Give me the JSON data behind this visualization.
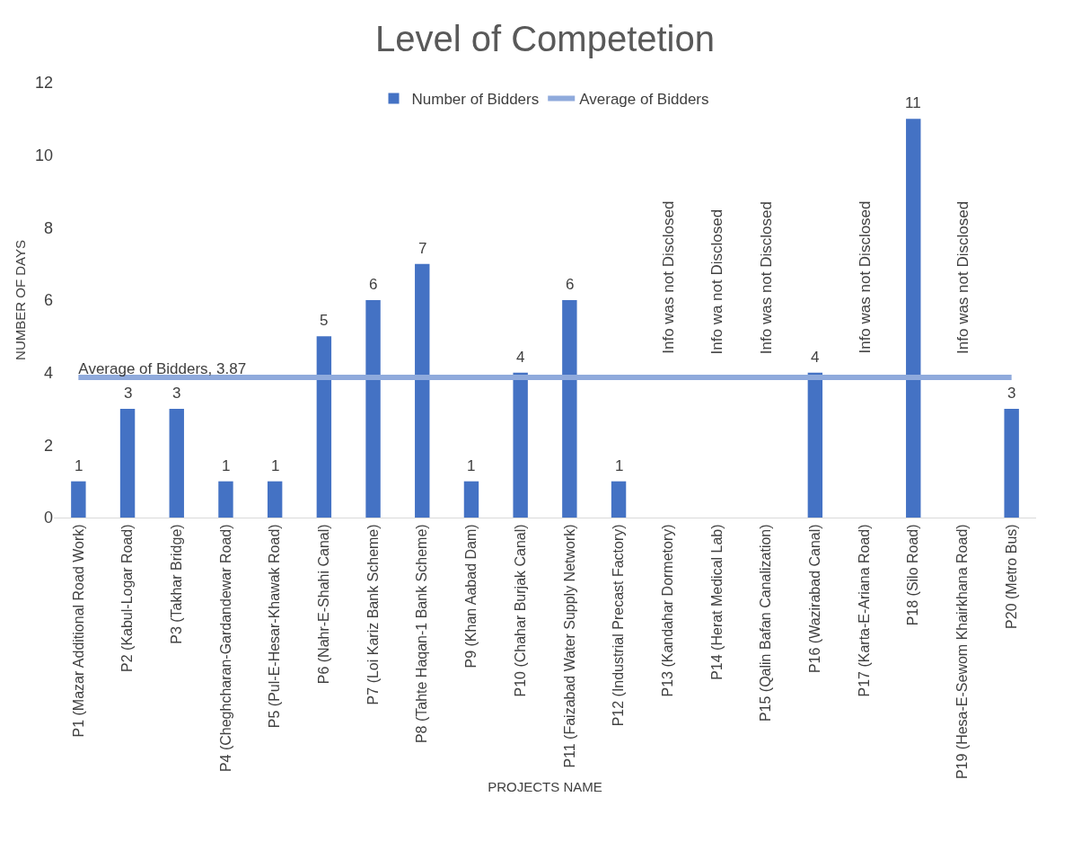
{
  "chart_data": {
    "type": "bar",
    "title": "Level of Competetion",
    "xlabel": "PROJECTS NAME",
    "ylabel": "NUMBER OF DAYS",
    "categories": [
      "P1 (Mazar Additional Road Work)",
      "P2 (Kabul-Logar Road)",
      "P3 (Takhar Bridge)",
      "P4 (Cheghcharan-Gardandewar Road)",
      "P5 (Pul-E-Hesar-Khawak Road)",
      "P6 (Nahr-E-Shahi Canal)",
      "P7 (Loi Kariz Bank Scheme)",
      "P8 (Tahte Haqan-1 Bank Scheme)",
      "P9 (Khan Aabad Dam)",
      "P10 (Chahar Burjak Canal)",
      "P11 (Faizabad Water Supply Network)",
      "P12 (Industrial Precast Factory)",
      "P13 (Kandahar Dormetory)",
      "P14 (Herat Medical Lab)",
      "P15 (Qalin Bafan Canalization)",
      "P16 (Wazirabad Canal)",
      "P17 (Karta-E-Ariana Road)",
      "P18 (Silo Road)",
      "P19 (Hesa-E-Sewom Khairkhana Road)",
      "P20 (Metro Bus)"
    ],
    "series": [
      {
        "name": "Number of Bidders",
        "color": "#4472c4",
        "values": [
          1,
          3,
          3,
          1,
          1,
          5,
          6,
          7,
          1,
          4,
          6,
          1,
          null,
          null,
          null,
          4,
          null,
          11,
          null,
          3
        ],
        "value_labels": [
          "1",
          "3",
          "3",
          "1",
          "1",
          "5",
          "6",
          "7",
          "1",
          "4",
          "6",
          "1",
          "Info was not Disclosed",
          "Info wa not Disclosed",
          "Info was not Disclosed",
          "4",
          "Info was not Disclosed",
          "11",
          "Info was not Disclosed",
          "3"
        ]
      },
      {
        "name": "Average of Bidders",
        "type": "line",
        "color": "#8faadc",
        "values": [
          3.87,
          3.87,
          3.87,
          3.87,
          3.87,
          3.87,
          3.87,
          3.87,
          3.87,
          3.87,
          3.87,
          3.87,
          3.87,
          3.87,
          3.87,
          3.87,
          3.87,
          3.87,
          3.87,
          3.87
        ],
        "value_labels": [
          "Average of Bidders, 3.87",
          null,
          null,
          null,
          null,
          null,
          null,
          null,
          null,
          null,
          null,
          null,
          null,
          null,
          null,
          null,
          null,
          null,
          null,
          null
        ]
      }
    ],
    "ylim": [
      0,
      12
    ],
    "yticks": [
      0,
      2,
      4,
      6,
      8,
      10,
      12
    ],
    "grid": false,
    "legend": "top"
  }
}
